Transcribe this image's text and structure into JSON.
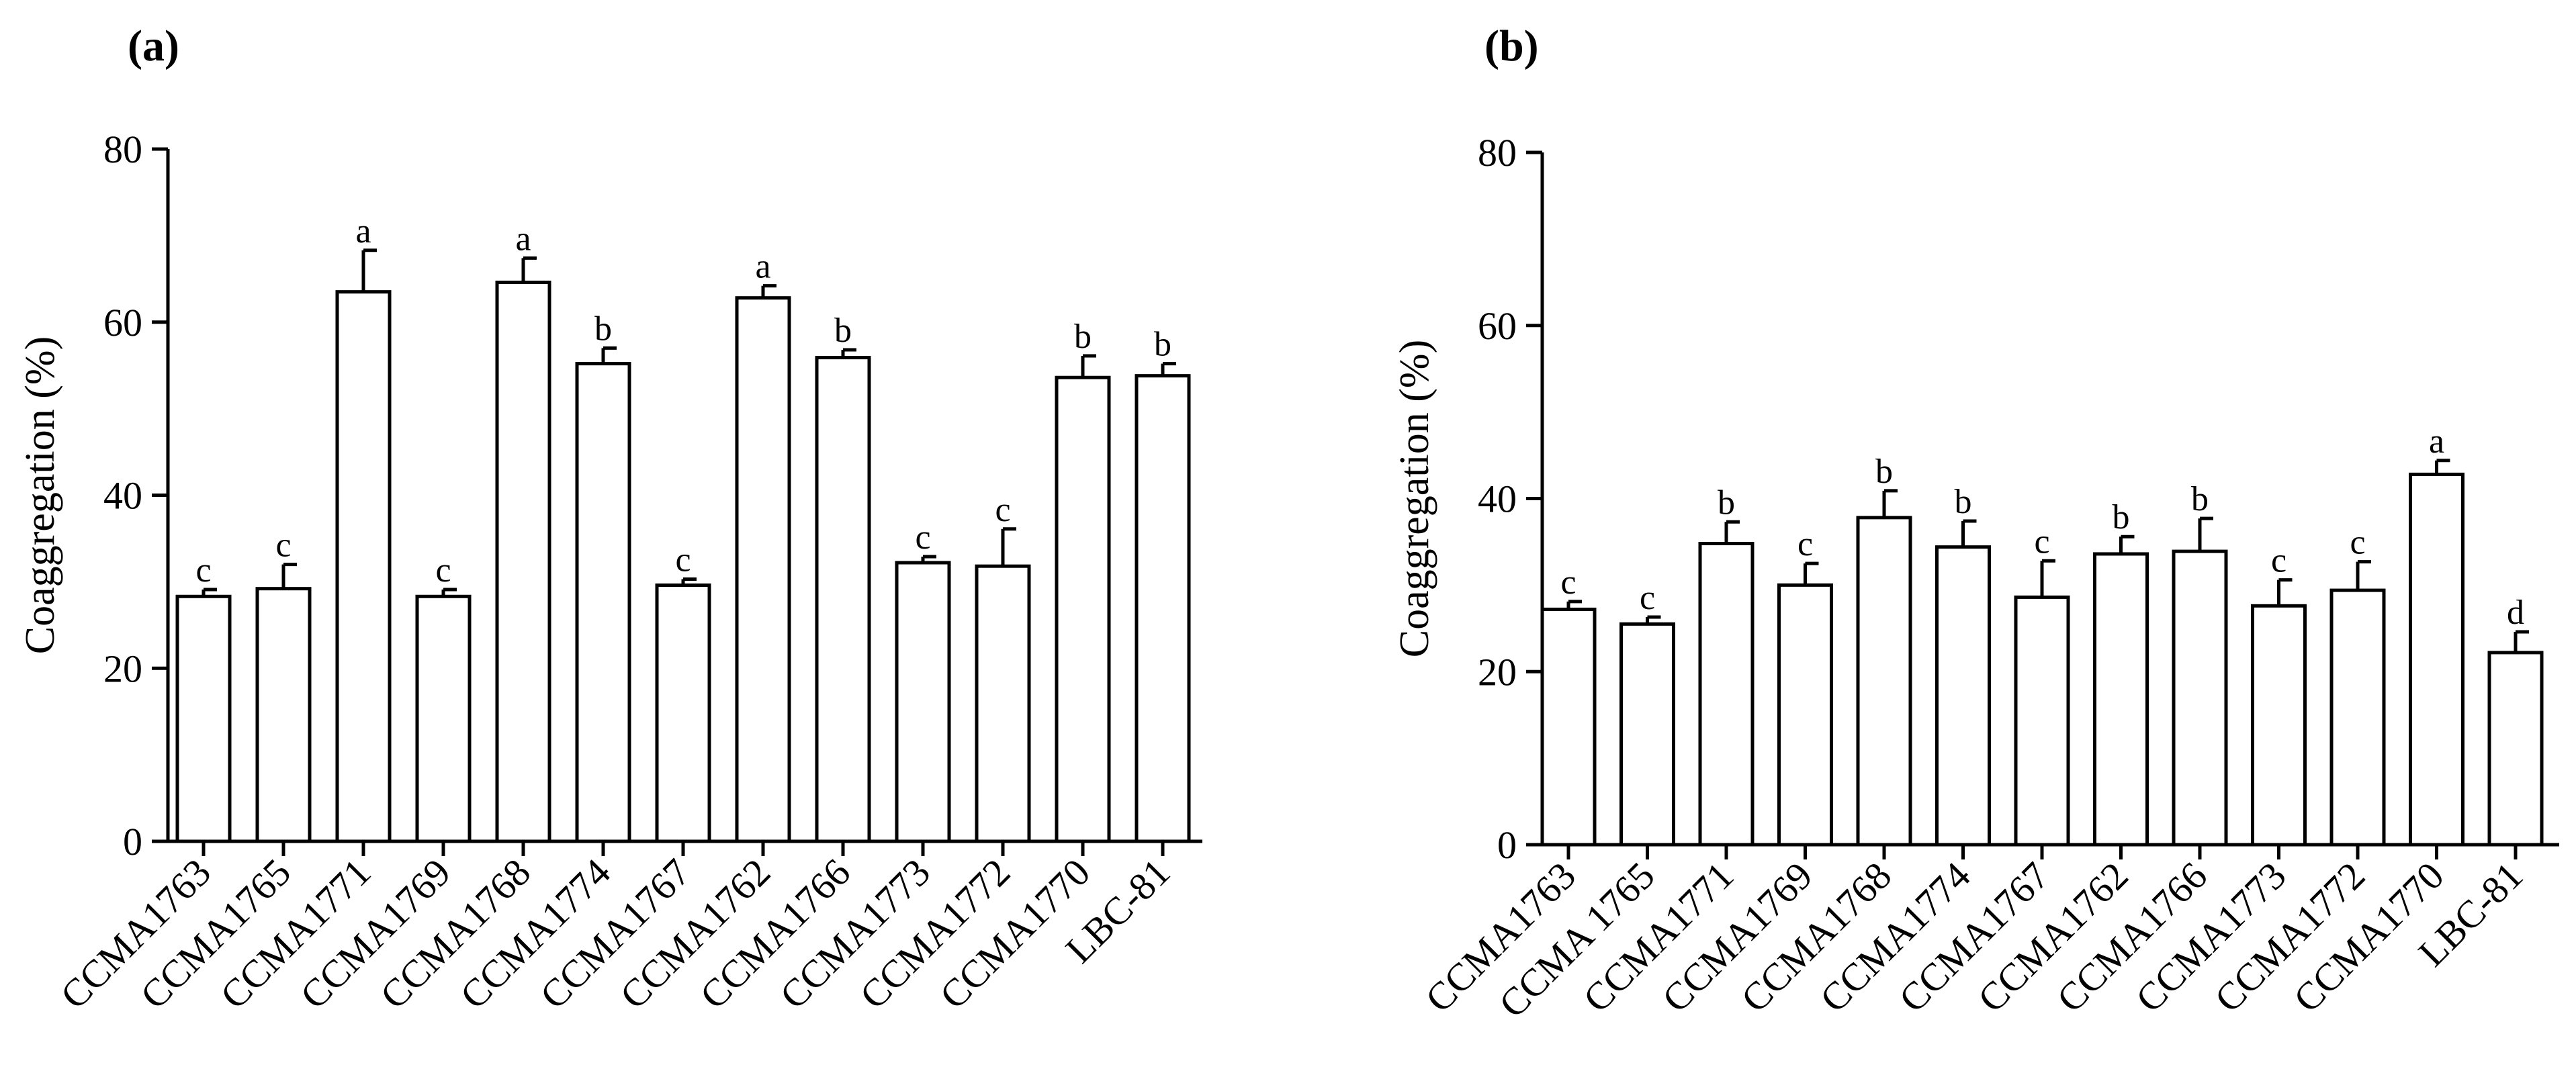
{
  "chart_data": [
    {
      "type": "bar",
      "panel_label": "(a)",
      "ylabel": "Coaggregation (%)",
      "xlabel": "",
      "ylim": [
        0,
        80
      ],
      "yticks": [
        0,
        20,
        40,
        60,
        80
      ],
      "categories": [
        "CCMA1763",
        "CCMA1765",
        "CCMA1771",
        "CCMA1769",
        "CCMA1768",
        "CCMA1774",
        "CCMA1767",
        "CCMA1762",
        "CCMA1766",
        "CCMA1773",
        "CCMA1772",
        "CCMA1770",
        "LBC-81"
      ],
      "values": [
        28.3,
        29.2,
        63.5,
        28.3,
        64.6,
        55.2,
        29.6,
        62.8,
        55.9,
        32.2,
        31.8,
        53.6,
        53.8
      ],
      "errors": [
        0.8,
        2.8,
        4.8,
        0.8,
        2.8,
        1.8,
        0.7,
        1.4,
        0.9,
        0.7,
        4.3,
        2.5,
        1.4
      ],
      "letters": [
        "c",
        "c",
        "a",
        "c",
        "a",
        "b",
        "c",
        "a",
        "b",
        "c",
        "c",
        "b",
        "b"
      ]
    },
    {
      "type": "bar",
      "panel_label": "(b)",
      "ylabel": "Coaggregation (%)",
      "xlabel": "",
      "ylim": [
        0,
        80
      ],
      "yticks": [
        0,
        20,
        40,
        60,
        80
      ],
      "categories": [
        "CCMA1763",
        "CCMA 1765",
        "CCMA1771",
        "CCMA1769",
        "CCMA1768",
        "CCMA1774",
        "CCMA1767",
        "CCMA1762",
        "CCMA1766",
        "CCMA1773",
        "CCMA1772",
        "CCMA1770",
        "LBC-81"
      ],
      "values": [
        27.2,
        25.5,
        34.8,
        30.0,
        37.8,
        34.4,
        28.6,
        33.6,
        33.9,
        27.6,
        29.4,
        42.8,
        22.2
      ],
      "errors": [
        0.9,
        0.8,
        2.5,
        2.5,
        3.1,
        3.0,
        4.2,
        2.0,
        3.8,
        3.0,
        3.3,
        1.6,
        2.4
      ],
      "letters": [
        "c",
        "c",
        "b",
        "c",
        "b",
        "b",
        "c",
        "b",
        "b",
        "c",
        "c",
        "a",
        "d"
      ]
    }
  ]
}
